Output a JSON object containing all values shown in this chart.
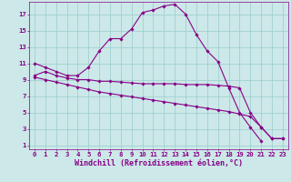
{
  "xlabel": "Windchill (Refroidissement éolien,°C)",
  "bg_color": "#cce8e8",
  "line_color": "#880088",
  "grid_color": "#99cccc",
  "xmin": 0,
  "xmax": 23,
  "ymin": 1,
  "ymax": 17,
  "series": [
    {
      "x": [
        0,
        1,
        2,
        3,
        4,
        5,
        6,
        7,
        8,
        9,
        10,
        11,
        12,
        13,
        14,
        15,
        16,
        17,
        18,
        19,
        20,
        21,
        22,
        23
      ],
      "y": [
        11.0,
        10.5,
        10.0,
        9.5,
        9.5,
        10.5,
        12.5,
        14.0,
        14.0,
        15.2,
        17.2,
        17.5,
        18.0,
        18.2,
        17.0,
        14.5,
        12.5,
        11.2,
        8.0,
        5.0,
        3.2,
        1.5,
        null,
        null
      ]
    },
    {
      "x": [
        0,
        1,
        2,
        3,
        4,
        5,
        6,
        7,
        8,
        9,
        10,
        11,
        12,
        13,
        14,
        15,
        16,
        17,
        18,
        19,
        20,
        21,
        22,
        23
      ],
      "y": [
        9.5,
        10.0,
        9.5,
        9.2,
        9.0,
        9.0,
        8.8,
        8.8,
        8.7,
        8.6,
        8.5,
        8.5,
        8.5,
        8.5,
        8.4,
        8.4,
        8.4,
        8.3,
        8.2,
        8.0,
        5.0,
        3.2,
        1.8,
        1.8
      ]
    },
    {
      "x": [
        0,
        1,
        2,
        3,
        4,
        5,
        6,
        7,
        8,
        9,
        10,
        11,
        12,
        13,
        14,
        15,
        16,
        17,
        18,
        19,
        20,
        21,
        22,
        23
      ],
      "y": [
        9.3,
        9.0,
        8.7,
        8.4,
        8.1,
        7.8,
        7.5,
        7.3,
        7.1,
        6.9,
        6.7,
        6.5,
        6.3,
        6.1,
        5.9,
        5.7,
        5.5,
        5.3,
        5.1,
        4.8,
        4.5,
        3.2,
        1.8,
        1.8
      ]
    }
  ],
  "xticks": [
    0,
    1,
    2,
    3,
    4,
    5,
    6,
    7,
    8,
    9,
    10,
    11,
    12,
    13,
    14,
    15,
    16,
    17,
    18,
    19,
    20,
    21,
    22,
    23
  ],
  "yticks": [
    1,
    3,
    5,
    7,
    9,
    11,
    13,
    15,
    17
  ],
  "tick_fontsize": 5.2,
  "label_fontsize": 6.0
}
